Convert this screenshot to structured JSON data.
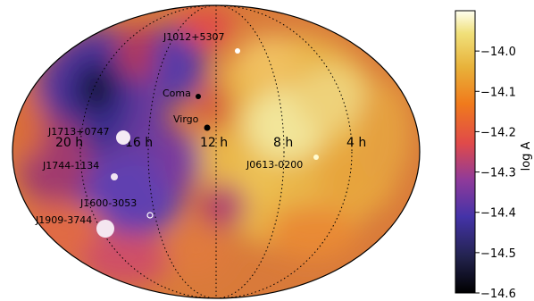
{
  "chart_data": {
    "type": "heatmap",
    "projection": "mollweide-like sky map",
    "grid": "dotted meridians",
    "colormap": "CMRmap-like (black-blue-purple-red-orange-yellow-white)",
    "hour_labels": [
      "20 h",
      "16 h",
      "12 h",
      "8 h",
      "4 h"
    ],
    "colorbar": {
      "label": "log A",
      "range": [
        -14.6,
        -13.9
      ],
      "ticks": [
        "-14.0",
        "-14.1",
        "-14.2",
        "-14.3",
        "-14.4",
        "-14.5",
        "-14.6"
      ]
    },
    "sources": [
      {
        "name": "J1012+5307",
        "marker_color": "#ffffff"
      },
      {
        "name": "Coma",
        "marker_color": "#000000"
      },
      {
        "name": "Virgo",
        "marker_color": "#000000"
      },
      {
        "name": "J1713+0747",
        "marker_color": "#f4eaf4"
      },
      {
        "name": "J0613-0200",
        "marker_color": "#fffbd0"
      },
      {
        "name": "J1744-1134",
        "marker_color": "#f0e4f2"
      },
      {
        "name": "J1600-3053",
        "marker_color": "#ffffff"
      },
      {
        "name": "J1909-3744",
        "marker_color": "#f4e6f0"
      }
    ]
  }
}
